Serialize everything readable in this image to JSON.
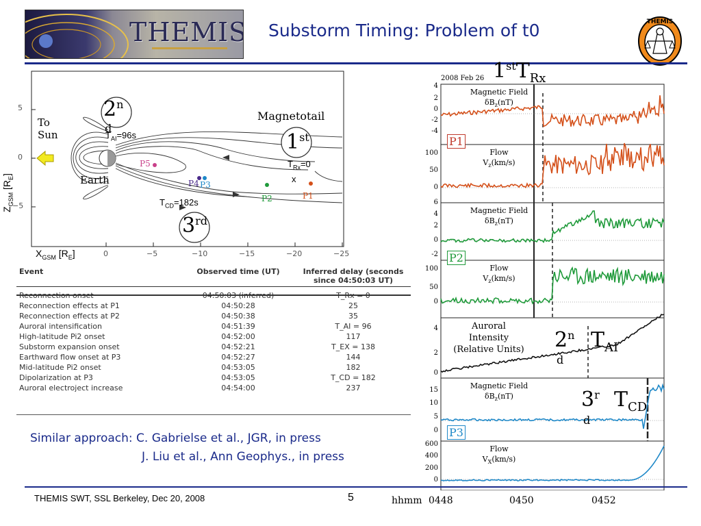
{
  "header": {
    "logo_text": "THEMIS",
    "title": "Substorm Timing: Problem of t0",
    "seal_text": "THEMIS"
  },
  "diagram": {
    "x_axis_label": "X",
    "x_axis_sub": "GSM",
    "x_axis_unit": " [R",
    "x_axis_unit_sub": "E",
    "x_axis_close": "]",
    "y_axis_label": "Z",
    "y_axis_sub": "GSM",
    "x_ticks": [
      "0",
      "−5",
      "−10",
      "−15",
      "−20",
      "−25"
    ],
    "y_ticks": [
      "5",
      "0",
      "−5"
    ],
    "to_sun": [
      "To",
      "Sun"
    ],
    "earth": "Earth",
    "magnetotail": "Magnetotail",
    "t_ai": "T",
    "t_ai_sub": "AI",
    "t_ai_val": "=96s",
    "t_rx": "T",
    "t_rx_sub": "Rx",
    "t_rx_val": "=0",
    "t_cd": "T",
    "t_cd_sub": "CD",
    "t_cd_val": "=182s",
    "x_mark": "x",
    "probes": {
      "p1": "P1",
      "p2": "P2",
      "p3": "P3",
      "p4": "P4",
      "p5": "P5"
    },
    "circle1": {
      "num": "1",
      "sup": "st"
    },
    "circle2": {
      "num": "2",
      "sup": "n",
      "sub": "d"
    },
    "circle3": {
      "num": "3",
      "sup": "rd"
    }
  },
  "table": {
    "headers": [
      "Event",
      "Observed time (UT)",
      "Inferred delay (seconds since 04:50:03 UT)"
    ],
    "rows": [
      [
        "Reconnection onset",
        "04:50:03 (inferred)",
        "T_Rx = 0"
      ],
      [
        "Reconnection effects at P1",
        "04:50:28",
        "25"
      ],
      [
        "Reconnection effects at P2",
        "04:50:38",
        "35"
      ],
      [
        "Auroral intensification",
        "04:51:39",
        "T_AI = 96"
      ],
      [
        "High-latitude Pi2 onset",
        "04:52:00",
        "117"
      ],
      [
        "Substorm expansion onset",
        "04:52:21",
        "T_EX = 138"
      ],
      [
        "Earthward flow onset at P3",
        "04:52:27",
        "144"
      ],
      [
        "Mid-latitude Pi2 onset",
        "04:53:05",
        "182"
      ],
      [
        "Dipolarization at P3",
        "04:53:05",
        "T_CD = 182"
      ],
      [
        "Auroral electroject increase",
        "04:54:00",
        "237"
      ]
    ]
  },
  "citations": [
    "Similar approach: C. Gabrielse et al., JGR, in press",
    "J. Liu et al., Ann Geophys., in press"
  ],
  "plot": {
    "date": "2008 Feb 26",
    "x_tick_labels": [
      "hhmm",
      "0448",
      "0450",
      "0452"
    ],
    "panels": [
      {
        "label": "Magnetic Field",
        "label2": "δB",
        "label2_sub": "z",
        "label2_tail": "(nT)",
        "probe": "P1",
        "ticks": [
          "4",
          "2",
          "0",
          "-2",
          "-4"
        ]
      },
      {
        "label": "Flow",
        "label2": "V",
        "label2_sub": "z",
        "label2_tail": "(km/s)",
        "ticks": [
          "100",
          "50",
          "0"
        ]
      },
      {
        "label": "Magnetic Field",
        "label2": "δB",
        "label2_sub": "z",
        "label2_tail": "(nT)",
        "probe": "P2",
        "ticks": [
          "6",
          "4",
          "2",
          "0",
          "-2"
        ]
      },
      {
        "label": "Flow",
        "label2": "V",
        "label2_sub": "z",
        "label2_tail": "(km/s)",
        "ticks": [
          "100",
          "50",
          "0"
        ]
      },
      {
        "label": "Auroral",
        "label_b": "Intensity",
        "label_c": "(Relative Units)",
        "ticks": [
          "4",
          "2",
          "0"
        ]
      },
      {
        "label": "Magnetic Field",
        "label2": "δB",
        "label2_sub": "z",
        "label2_tail": "(nT)",
        "probe": "P3",
        "ticks": [
          "15",
          "10",
          "5",
          "0"
        ]
      },
      {
        "label": "Flow",
        "label2": "V",
        "label2_sub": "X",
        "label2_tail": "(km/s)",
        "ticks": [
          "600",
          "400",
          "200",
          "0"
        ]
      }
    ],
    "annot_1st": {
      "num": "1",
      "sup": "st",
      "T": "T",
      "sub": "Rx"
    },
    "annot_2nd": {
      "num": "2",
      "sup": "n",
      "sub_d": "d",
      "T": "T",
      "sub": "AI"
    },
    "annot_3rd": {
      "num": "3",
      "sup": "r",
      "sub_d": "d",
      "T": "T",
      "sub": "CD"
    },
    "colors": {
      "p1": "#d4501a",
      "p2": "#1f9a3a",
      "p3": "#1e88c8",
      "aurora": "#111111",
      "probe_label_p1": "#c0392b",
      "probe_label_p2": "#1f9a3a",
      "probe_label_p3": "#1e88c8"
    }
  },
  "footer": {
    "left": "THEMIS SWT, SSL Berkeley, Dec 20, 2008",
    "page": "5"
  }
}
